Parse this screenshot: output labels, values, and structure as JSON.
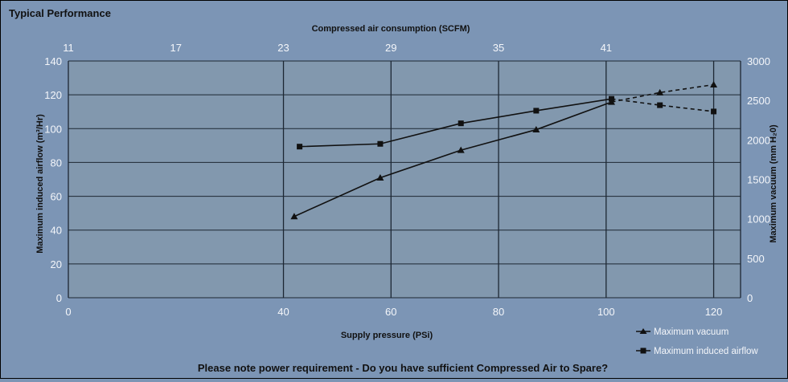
{
  "chart_data": {
    "type": "line",
    "title": "Typical Performance",
    "footer_note": "Please note power requirement - Do you have sufficient Compressed Air to Spare?",
    "x_bottom": {
      "label": "Supply pressure (PSi)",
      "range": [
        0,
        125
      ],
      "ticks": [
        0,
        40,
        60,
        80,
        100,
        120
      ]
    },
    "x_top": {
      "label": "Compressed air consumption (SCFM)",
      "ticks": [
        "11",
        "17",
        "23",
        "29",
        "35",
        "41"
      ]
    },
    "y_left": {
      "label": "Maximum induced airflow (m³/Hr)",
      "range": [
        0,
        140
      ],
      "ticks": [
        0,
        20,
        40,
        60,
        80,
        100,
        120,
        140
      ]
    },
    "y_right": {
      "label": "Maximum vacuum (mm H₂0)",
      "range": [
        0,
        3000
      ],
      "ticks": [
        0,
        500,
        1000,
        1500,
        2000,
        2500,
        3000
      ]
    },
    "grid": true,
    "legend_position": "bottom-right",
    "series": [
      {
        "name": "Maximum vacuum",
        "marker": "triangle",
        "axis": "right",
        "points": [
          [
            42,
            1030
          ],
          [
            58,
            1520
          ],
          [
            73,
            1870
          ],
          [
            87,
            2130
          ],
          [
            101,
            2480
          ],
          [
            110,
            2600
          ],
          [
            120,
            2700
          ]
        ],
        "dashed_from_index": 4
      },
      {
        "name": "Maximum induced airflow",
        "marker": "square",
        "axis": "right",
        "points": [
          [
            43,
            1915
          ],
          [
            58,
            1950
          ],
          [
            73,
            2210
          ],
          [
            87,
            2370
          ],
          [
            101,
            2520
          ],
          [
            110,
            2440
          ],
          [
            120,
            2360
          ]
        ],
        "dashed_from_index": 4
      }
    ]
  }
}
